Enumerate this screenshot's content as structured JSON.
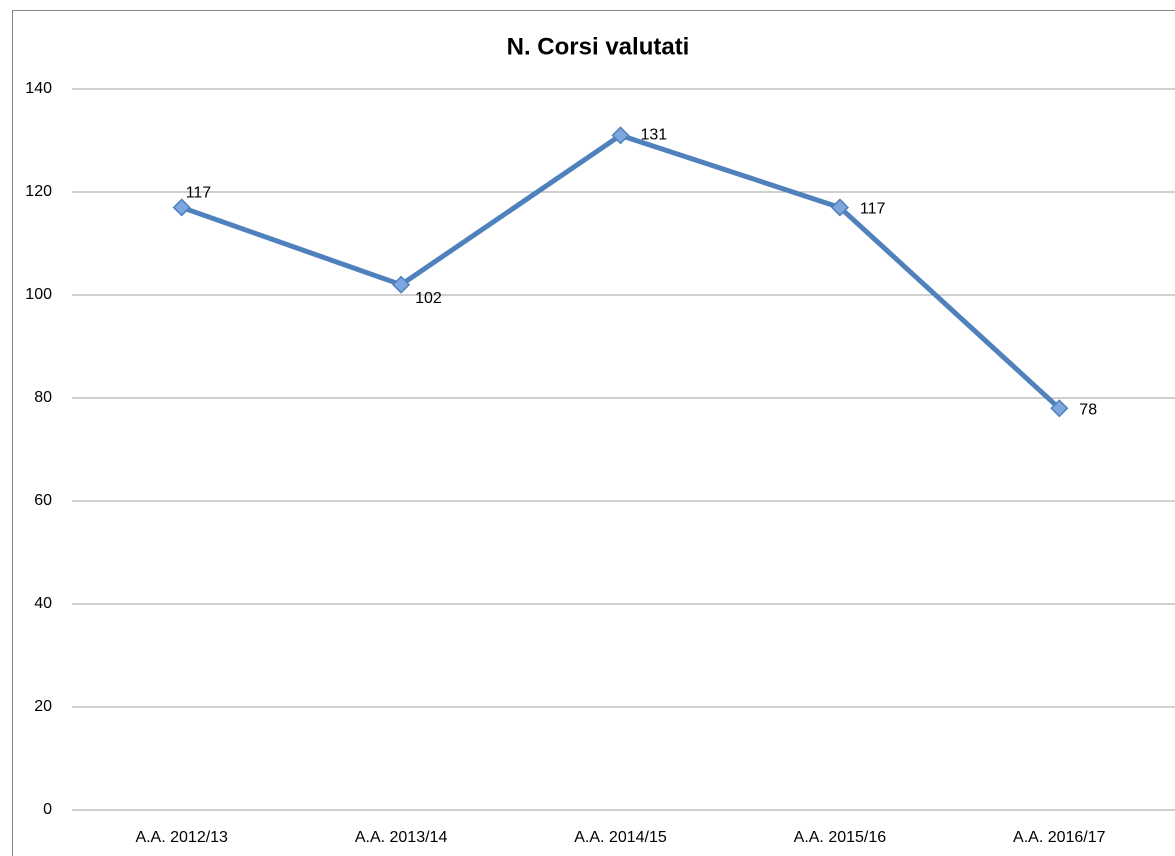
{
  "chart_data": {
    "type": "line",
    "title": "N. Corsi valutati",
    "categories": [
      "A.A. 2012/13",
      "A.A. 2013/14",
      "A.A. 2014/15",
      "A.A. 2015/16",
      "A.A. 2016/17"
    ],
    "series": [
      {
        "name": "N. Corsi valutati",
        "color": "#4f81bd",
        "values": [
          117,
          102,
          131,
          117,
          78
        ]
      }
    ],
    "ylim": [
      0,
      140
    ],
    "yticks": [
      0,
      20,
      40,
      60,
      80,
      100,
      120,
      140
    ],
    "grid": true
  }
}
